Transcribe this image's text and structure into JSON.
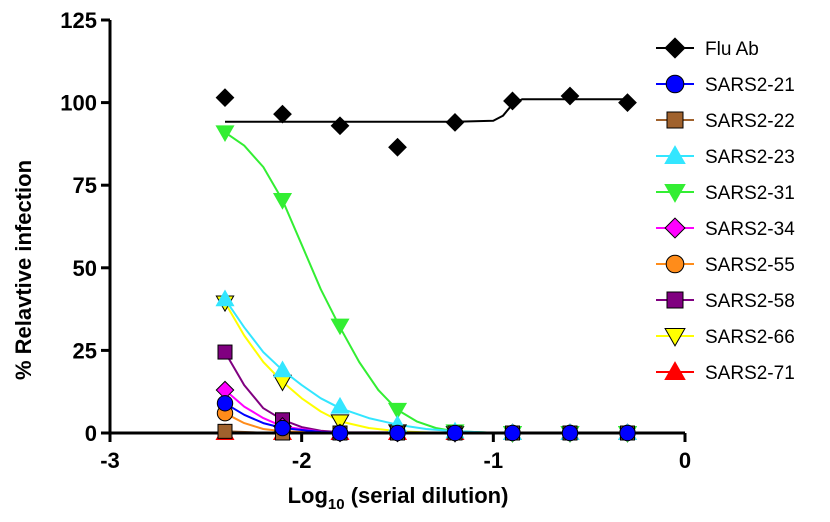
{
  "chart_data": {
    "type": "scatter",
    "title": "",
    "xlabel_main": "Log",
    "xlabel_sub": "10",
    "xlabel_rest": " (serial dilution)",
    "ylabel": "% Relavtive infection",
    "xlim": [
      -3,
      0
    ],
    "ylim": [
      0,
      125
    ],
    "xticks": [
      -3,
      -2,
      -1,
      0
    ],
    "xtick_labels": [
      "-3",
      "-2",
      "-1",
      "0"
    ],
    "yticks": [
      0,
      25,
      50,
      75,
      100,
      125
    ],
    "ytick_labels": [
      "0",
      "25",
      "50",
      "75",
      "100",
      "125"
    ],
    "grid": false,
    "legend": "right",
    "x": [
      -2.4,
      -2.1,
      -1.8,
      -1.5,
      -1.2,
      -0.9,
      -0.6,
      -0.3
    ],
    "series": [
      {
        "name": "Flu Ab",
        "marker": "diamond",
        "color": "#000000",
        "values": [
          101.5,
          96.5,
          93,
          86.5,
          94,
          100.5,
          102,
          100
        ],
        "fit": [
          [
            -2.4,
            94.2
          ],
          [
            -1.2,
            94.2
          ],
          [
            -1.0,
            94.5
          ],
          [
            -0.95,
            96
          ],
          [
            -0.9,
            99.5
          ],
          [
            -0.85,
            101
          ],
          [
            -0.3,
            101
          ]
        ]
      },
      {
        "name": "SARS2-21",
        "marker": "circle",
        "color": "#0000ff",
        "values": [
          9,
          1.5,
          0,
          0,
          0,
          0,
          0,
          0
        ],
        "fit": [
          [
            -2.4,
            9
          ],
          [
            -2.3,
            5.5
          ],
          [
            -2.2,
            3
          ],
          [
            -2.1,
            1.5
          ],
          [
            -1.9,
            0.3
          ],
          [
            -1.7,
            0
          ],
          [
            -0.3,
            0
          ]
        ]
      },
      {
        "name": "SARS2-22",
        "marker": "square",
        "color": "#a0622d",
        "values": [
          0.5,
          0,
          0,
          0,
          0,
          0,
          0,
          0
        ],
        "fit": [
          [
            -2.4,
            0.5
          ],
          [
            -2.2,
            0.1
          ],
          [
            -0.3,
            0
          ]
        ]
      },
      {
        "name": "SARS2-23",
        "marker": "triangle-up",
        "color": "#33e6ff",
        "values": [
          40.5,
          19,
          8,
          2.5,
          0.5,
          0,
          0,
          0
        ],
        "fit": [
          [
            -2.4,
            40.5
          ],
          [
            -2.3,
            32
          ],
          [
            -2.2,
            24.5
          ],
          [
            -2.1,
            19
          ],
          [
            -2.0,
            14.5
          ],
          [
            -1.9,
            10.5
          ],
          [
            -1.8,
            7.5
          ],
          [
            -1.65,
            4.5
          ],
          [
            -1.5,
            2.5
          ],
          [
            -1.35,
            1.2
          ],
          [
            -1.2,
            0.5
          ],
          [
            -1.0,
            0.1
          ],
          [
            -0.3,
            0
          ]
        ]
      },
      {
        "name": "SARS2-31",
        "marker": "triangle-down",
        "color": "#33ee33",
        "values": [
          91,
          70.5,
          32.5,
          7,
          0.5,
          0,
          0,
          0
        ],
        "fit": [
          [
            -2.4,
            91
          ],
          [
            -2.3,
            87
          ],
          [
            -2.2,
            80.5
          ],
          [
            -2.1,
            70.5
          ],
          [
            -2.0,
            57
          ],
          [
            -1.9,
            43.5
          ],
          [
            -1.8,
            32
          ],
          [
            -1.7,
            21.5
          ],
          [
            -1.6,
            13
          ],
          [
            -1.5,
            7
          ],
          [
            -1.4,
            3.5
          ],
          [
            -1.3,
            1.5
          ],
          [
            -1.2,
            0.5
          ],
          [
            -1.0,
            0.1
          ],
          [
            -0.3,
            0
          ]
        ]
      },
      {
        "name": "SARS2-34",
        "marker": "diamond",
        "color": "#ff00ff",
        "values": [
          13,
          2,
          0,
          0,
          0,
          0,
          0,
          0
        ],
        "fit": [
          [
            -2.4,
            13
          ],
          [
            -2.3,
            8
          ],
          [
            -2.2,
            4.5
          ],
          [
            -2.1,
            2
          ],
          [
            -1.9,
            0.4
          ],
          [
            -1.7,
            0
          ],
          [
            -0.3,
            0
          ]
        ]
      },
      {
        "name": "SARS2-55",
        "marker": "circle",
        "color": "#ff8c1a",
        "values": [
          6,
          0.5,
          0,
          0,
          0,
          0,
          0,
          0
        ],
        "fit": [
          [
            -2.4,
            6
          ],
          [
            -2.3,
            3
          ],
          [
            -2.2,
            1.2
          ],
          [
            -2.1,
            0.5
          ],
          [
            -1.9,
            0.1
          ],
          [
            -0.3,
            0
          ]
        ]
      },
      {
        "name": "SARS2-58",
        "marker": "square",
        "color": "#800080",
        "values": [
          24.5,
          4,
          0,
          0,
          0,
          0,
          0,
          0
        ],
        "fit": [
          [
            -2.4,
            24.5
          ],
          [
            -2.3,
            14.5
          ],
          [
            -2.2,
            7.5
          ],
          [
            -2.1,
            4
          ],
          [
            -2.0,
            1.8
          ],
          [
            -1.9,
            0.7
          ],
          [
            -1.8,
            0.2
          ],
          [
            -0.3,
            0
          ]
        ]
      },
      {
        "name": "SARS2-66",
        "marker": "triangle-down",
        "color": "#ffff00",
        "values": [
          39.5,
          15.5,
          3.5,
          0.5,
          0,
          0,
          0,
          0
        ],
        "fit": [
          [
            -2.4,
            39.5
          ],
          [
            -2.3,
            29.5
          ],
          [
            -2.2,
            21.5
          ],
          [
            -2.1,
            15.5
          ],
          [
            -2.0,
            10.5
          ],
          [
            -1.9,
            6.5
          ],
          [
            -1.8,
            3.5
          ],
          [
            -1.65,
            1.5
          ],
          [
            -1.5,
            0.5
          ],
          [
            -1.3,
            0.1
          ],
          [
            -0.3,
            0
          ]
        ]
      },
      {
        "name": "SARS2-71",
        "marker": "triangle-up",
        "color": "#ff0000",
        "values": [
          0,
          0,
          0,
          0,
          0,
          0,
          0,
          0
        ],
        "fit": [
          [
            -2.4,
            0
          ],
          [
            -0.3,
            0
          ]
        ]
      }
    ]
  }
}
